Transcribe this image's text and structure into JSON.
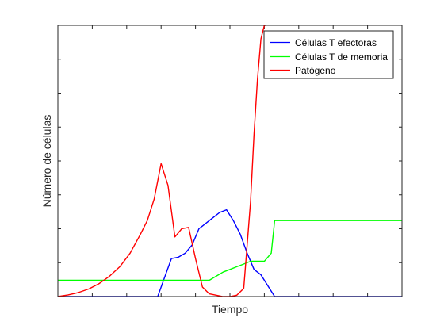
{
  "chart_data": {
    "type": "line",
    "title": "",
    "xlabel": "Tiempo",
    "ylabel": "Número de células",
    "xlim": [
      0,
      100
    ],
    "ylim": [
      0,
      100
    ],
    "x_ticks_labeled": false,
    "y_ticks_labeled": false,
    "grid": false,
    "legend_position": "top-right",
    "series": [
      {
        "name": "Células T efectoras",
        "color": "#0000ff",
        "x": [
          0,
          29,
          31,
          33,
          35,
          37,
          39,
          41,
          43,
          45,
          47,
          49,
          51,
          53,
          55,
          57,
          59,
          61,
          63,
          100
        ],
        "y": [
          0,
          0,
          7,
          14,
          14.5,
          16,
          19,
          25,
          27,
          29,
          31,
          32,
          28,
          23,
          16,
          10,
          8,
          4,
          0,
          0
        ]
      },
      {
        "name": "Células T de memoria",
        "color": "#00ff00",
        "x": [
          0,
          44,
          46,
          48,
          50,
          52,
          54,
          56,
          58,
          60,
          62,
          63,
          100
        ],
        "y": [
          6,
          6,
          7.5,
          9,
          10,
          11,
          12,
          13,
          13,
          13,
          16,
          28,
          28
        ],
        "x_note": "",
        "y_note": ""
      },
      {
        "name": "Patógeno",
        "color": "#ff0000",
        "x": [
          0,
          3,
          6,
          9,
          12,
          15,
          18,
          21,
          24,
          26,
          28,
          30,
          32,
          34,
          36,
          38,
          40,
          42,
          44,
          46,
          48,
          50,
          52,
          54,
          56,
          57,
          58,
          59,
          60,
          60.5
        ],
        "y": [
          0,
          0.6,
          1.5,
          2.8,
          4.8,
          7.5,
          11,
          16,
          23,
          28,
          36,
          49,
          41,
          22,
          25,
          25.5,
          14,
          3.5,
          1,
          0.5,
          0,
          0,
          0.5,
          3,
          35,
          60,
          80,
          95,
          100,
          100
        ]
      }
    ]
  },
  "legend": {
    "items": [
      {
        "label": "Células T efectoras",
        "color": "#0000ff"
      },
      {
        "label": "Células T de memoria",
        "color": "#00ff00"
      },
      {
        "label": "Patógeno",
        "color": "#ff0000"
      }
    ]
  }
}
